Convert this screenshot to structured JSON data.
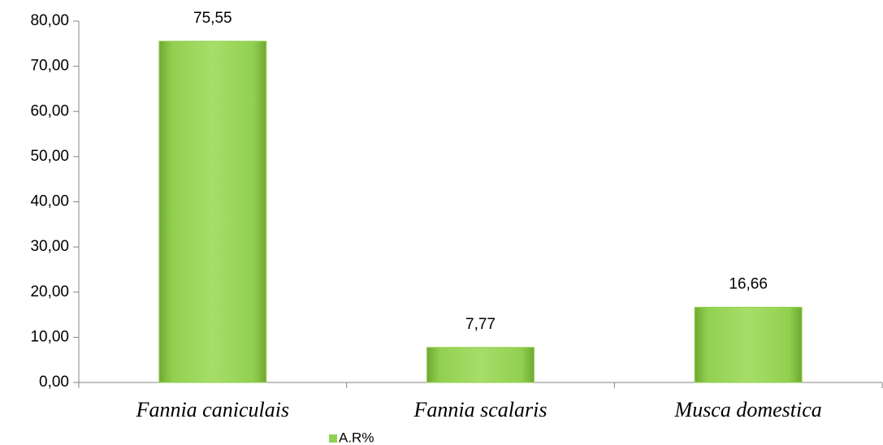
{
  "chart_data": {
    "type": "bar",
    "categories": [
      "Fannia caniculais",
      "Fannia scalaris",
      "Musca domestica"
    ],
    "series": [
      {
        "name": "A.R%",
        "color": "#92d050",
        "values": [
          75.55,
          7.77,
          16.66
        ],
        "value_labels": [
          "75,55",
          "7,77",
          "16,66"
        ]
      }
    ],
    "ylim": [
      0,
      80
    ],
    "yticks": [
      {
        "value": 0,
        "label": "0,00"
      },
      {
        "value": 10,
        "label": "10,00"
      },
      {
        "value": 20,
        "label": "20,00"
      },
      {
        "value": 30,
        "label": "30,00"
      },
      {
        "value": 40,
        "label": "40,00"
      },
      {
        "value": 50,
        "label": "50,00"
      },
      {
        "value": 60,
        "label": "60,00"
      },
      {
        "value": 70,
        "label": "70,00"
      },
      {
        "value": 80,
        "label": "80,00"
      }
    ],
    "grid": false,
    "legend": "bottom"
  }
}
